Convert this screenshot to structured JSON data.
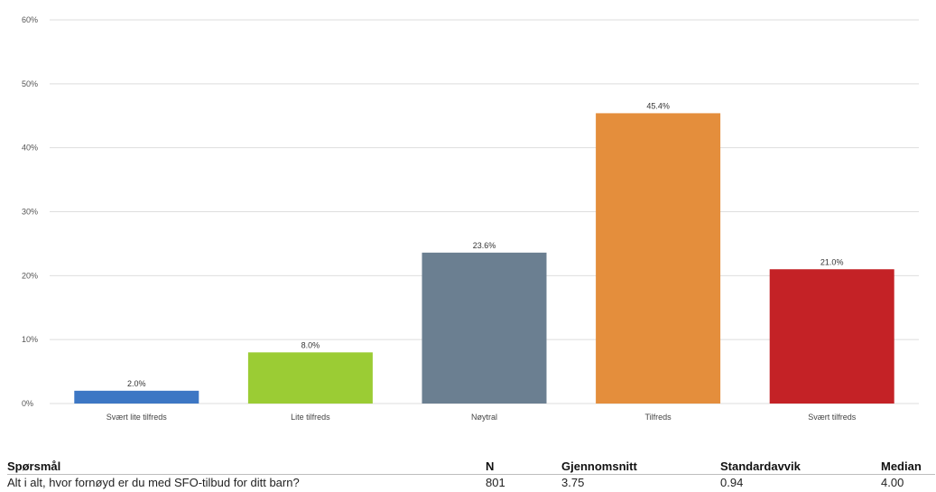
{
  "chart_data": {
    "type": "bar",
    "categories": [
      "Svært lite tilfreds",
      "Lite tilfreds",
      "Nøytral",
      "Tilfreds",
      "Svært tilfreds"
    ],
    "values": [
      2.0,
      8.0,
      23.6,
      45.4,
      21.0
    ],
    "data_labels": [
      "2.0%",
      "8.0%",
      "23.6%",
      "45.4%",
      "21.0%"
    ],
    "colors": [
      "#3d77c4",
      "#9bcc34",
      "#6b7f91",
      "#e48e3c",
      "#c42226"
    ],
    "ylim": [
      0,
      60
    ],
    "yticks": [
      "0%",
      "10%",
      "20%",
      "30%",
      "40%",
      "50%",
      "60%"
    ],
    "grid": true,
    "title": "",
    "xlabel": "",
    "ylabel": ""
  },
  "table": {
    "headers": [
      "Spørsmål",
      "N",
      "Gjennomsnitt",
      "Standardavvik",
      "Median"
    ],
    "row": [
      "Alt i alt, hvor fornøyd er du med SFO-tilbud for ditt barn?",
      "801",
      "3.75",
      "0.94",
      "4.00"
    ]
  }
}
